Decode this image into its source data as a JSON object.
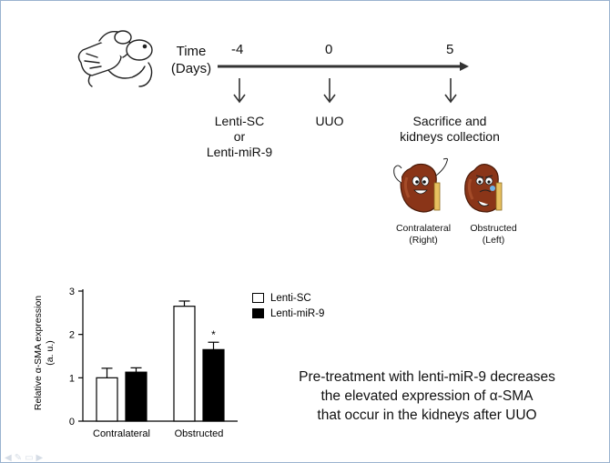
{
  "timeline": {
    "time_label_line1": "Time",
    "time_label_line2": "(Days)",
    "day_ticks": [
      {
        "label": "-4",
        "event_lines": [
          "Lenti-SC",
          "or",
          "Lenti-miR-9"
        ]
      },
      {
        "label": "0",
        "event_lines": [
          "UUO"
        ]
      },
      {
        "label": "5",
        "event_lines": [
          "Sacrifice and",
          "kidneys collection"
        ]
      }
    ]
  },
  "kidneys": {
    "contralateral_line1": "Contralateral",
    "contralateral_line2": "(Right)",
    "obstructed_line1": "Obstructed",
    "obstructed_line2": "(Left)"
  },
  "chart_data": {
    "type": "bar",
    "categories": [
      "Contralateral",
      "Obstructed"
    ],
    "series": [
      {
        "name": "Lenti-SC",
        "fill": "#ffffff",
        "values": [
          1.0,
          2.65
        ],
        "errors": [
          0.22,
          0.12
        ]
      },
      {
        "name": "Lenti-miR-9",
        "fill": "#000000",
        "values": [
          1.13,
          1.65
        ],
        "errors": [
          0.1,
          0.17
        ]
      }
    ],
    "ylabel_line1": "Relative α-SMA expression",
    "ylabel_line2": "(a. u.)",
    "ylim": [
      0,
      3
    ],
    "yticks": [
      "0",
      "1",
      "2",
      "3"
    ],
    "significance_marker": "*",
    "legend_position": "top-right"
  },
  "conclusion": {
    "lines": [
      "Pre-treatment with lenti-miR-9 decreases",
      "the elevated expression of  α-SMA",
      "that occur in the kidneys after UUO"
    ]
  }
}
